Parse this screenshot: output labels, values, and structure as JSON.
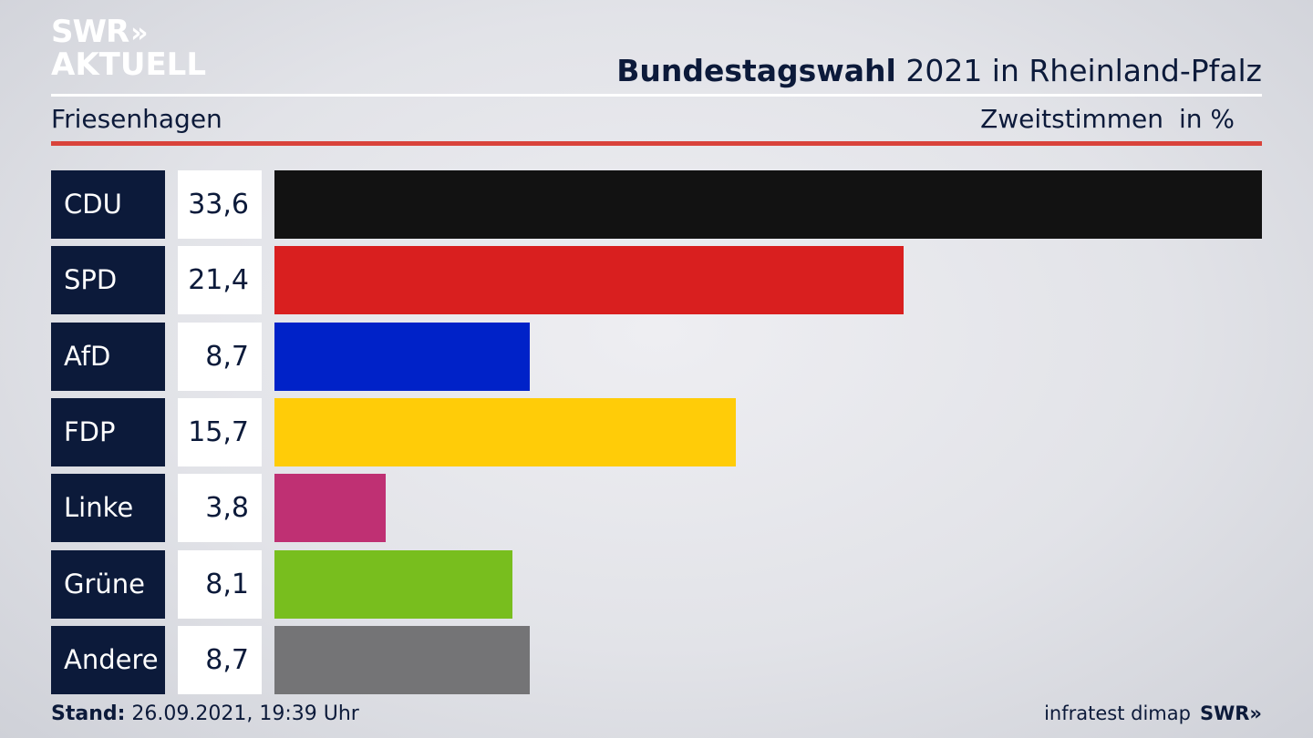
{
  "logo": {
    "line1": "SWR",
    "chevrons": "»",
    "line2": "AKTUELL"
  },
  "header": {
    "title_bold": "Bundestagswahl",
    "title_rest": " 2021 in Rheinland-Pfalz",
    "place": "Friesenhagen",
    "vote_type": "Zweitstimmen",
    "unit": "in %"
  },
  "footer": {
    "stand_label": "Stand:",
    "stand_value": " 26.09.2021, 19:39 Uhr",
    "source": "infratest dimap",
    "brand": "SWR»"
  },
  "chart_data": {
    "type": "bar",
    "orientation": "horizontal",
    "title": "Bundestagswahl 2021 in Rheinland-Pfalz",
    "subtitle": "Friesenhagen",
    "unit": "in %",
    "xlim": [
      0,
      33.6
    ],
    "categories": [
      "CDU",
      "SPD",
      "AfD",
      "FDP",
      "Linke",
      "Grüne",
      "Andere"
    ],
    "values": [
      33.6,
      21.4,
      8.7,
      15.7,
      3.8,
      8.1,
      8.7
    ],
    "labels": [
      "33,6",
      "21,4",
      "8,7",
      "15,7",
      "3,8",
      "8,1",
      "8,7"
    ],
    "colors": [
      "#121212",
      "#d91f1f",
      "#0022c8",
      "#ffcc08",
      "#bf3073",
      "#78be1e",
      "#747476"
    ]
  }
}
